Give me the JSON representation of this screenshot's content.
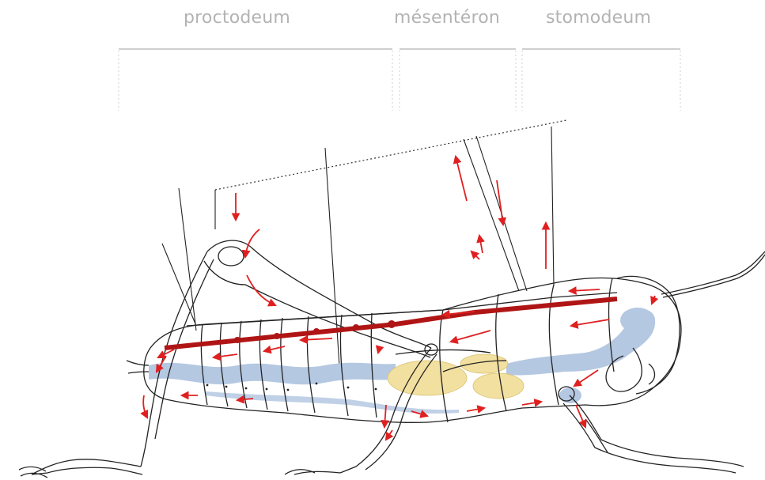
{
  "labels": {
    "proctodeum": "proctodeum",
    "mesenteron": "mésentéron",
    "stomodeum": "stomodeum"
  },
  "colors": {
    "outline": "#222222",
    "gut": "#b5c8e2",
    "midgut_caeca": "#f2e0a0",
    "flow_arrow": "#e02020",
    "dorsal_vessel": "#b01515",
    "bracket": "#cfcfcf"
  },
  "icons": {
    "insect": "grasshopper-anatomy-diagram",
    "arrows": "red-flow-arrows"
  }
}
